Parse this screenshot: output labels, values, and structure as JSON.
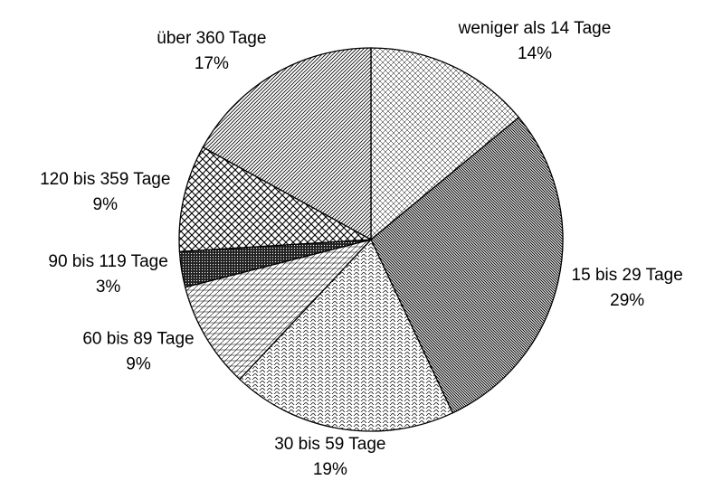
{
  "chart_data": {
    "type": "pie",
    "categories": [
      "weniger als 14 Tage",
      "15 bis 29 Tage",
      "30 bis 59 Tage",
      "60 bis 89 Tage",
      "90 bis 119 Tage",
      "120 bis 359 Tage",
      "über 360 Tage"
    ],
    "values": [
      14,
      29,
      19,
      9,
      3,
      9,
      17
    ],
    "value_labels": [
      "14%",
      "29%",
      "19%",
      "9%",
      "3%",
      "9%",
      "17%"
    ]
  }
}
